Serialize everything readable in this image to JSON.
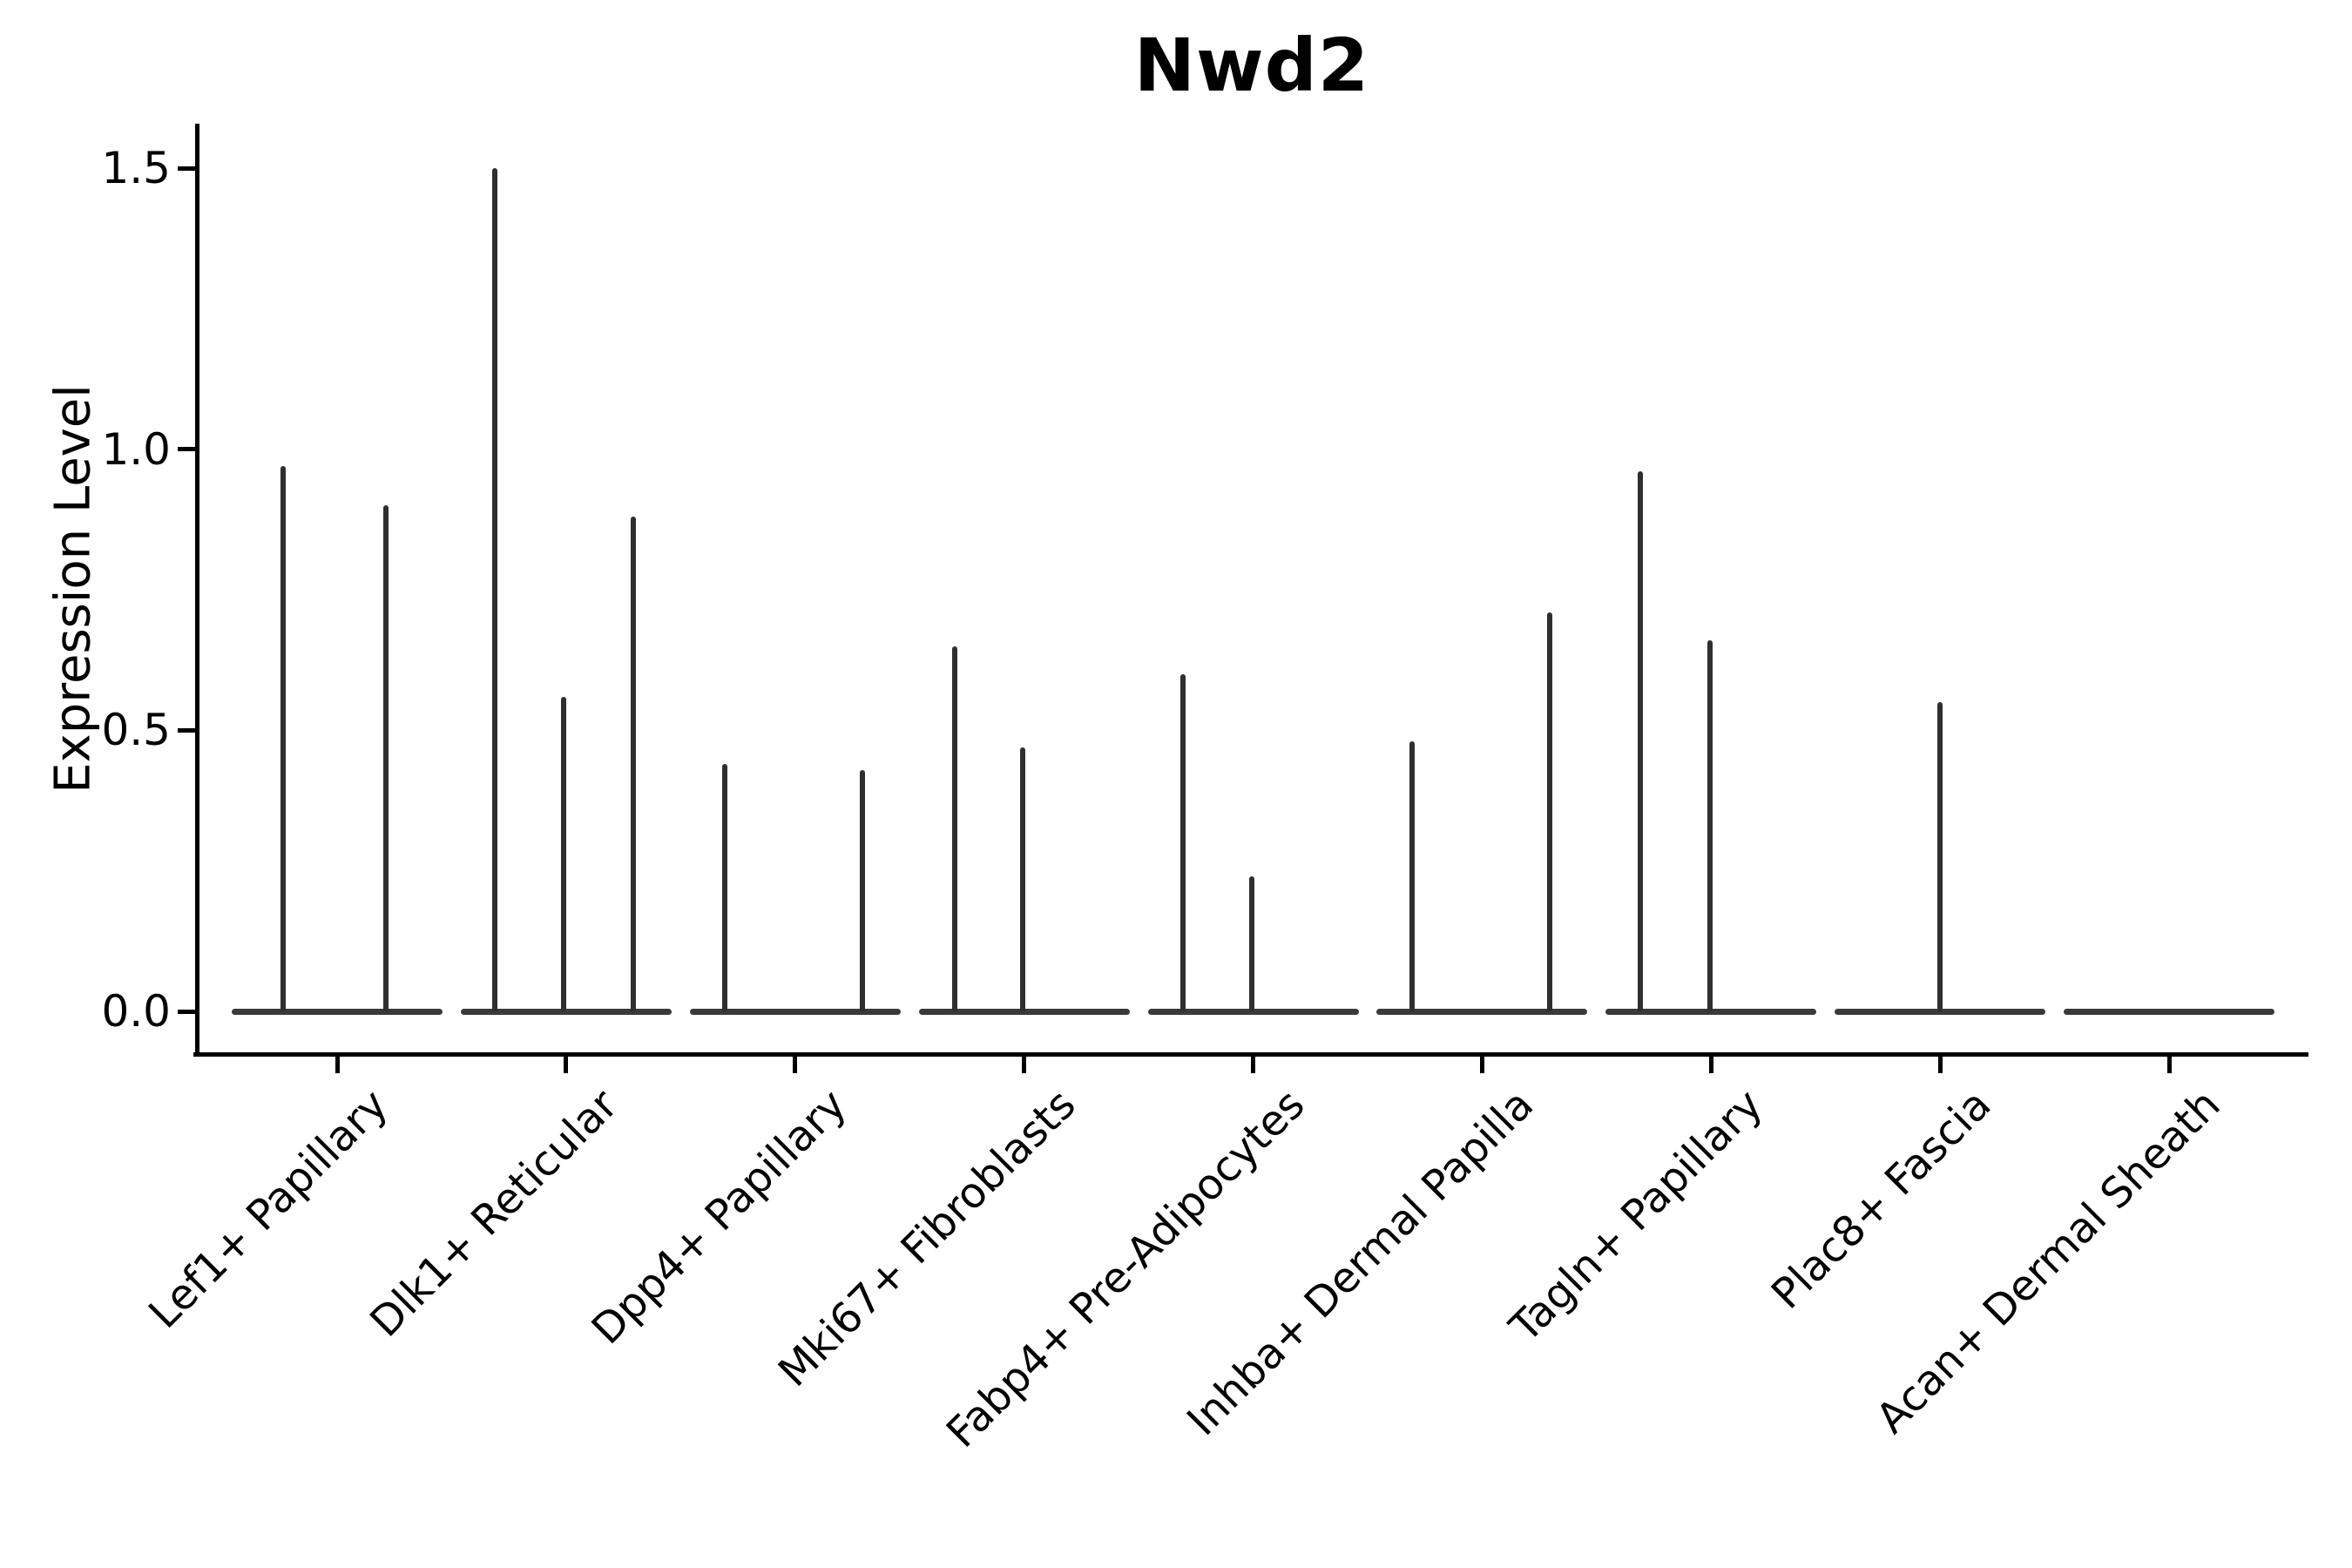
{
  "title": "Nwd2",
  "y_axis": {
    "label": "Expression Level",
    "ticks": [
      {
        "label": "0.0",
        "value": 0.0
      },
      {
        "label": "0.5",
        "value": 0.5
      },
      {
        "label": "1.0",
        "value": 1.0
      },
      {
        "label": "1.5",
        "value": 1.5
      }
    ]
  },
  "chart_data": {
    "type": "violin",
    "title": "Nwd2",
    "xlabel": "",
    "ylabel": "Expression Level",
    "ylim": [
      0,
      1.58
    ],
    "grid": false,
    "legend": "none",
    "line_color": "#2f2f2f",
    "categories": [
      "Lef1+ Papillary",
      "Dlk1+ Reticular",
      "Dpp4+ Papillary",
      "Mki67+ Fibroblasts",
      "Fabp4+ Pre-Adipocytes",
      "Inhba+ Dermal Papilla",
      "Tagln+ Papillary",
      "Plac8+ Fascia",
      "Acan+ Dermal Sheath"
    ],
    "series": [
      {
        "name": "Lef1+ Papillary",
        "baseline_value": 0,
        "spikes": [
          {
            "offset": -62,
            "value": 0.97
          },
          {
            "offset": 56,
            "value": 0.9
          }
        ]
      },
      {
        "name": "Dlk1+ Reticular",
        "baseline_value": 0,
        "spikes": [
          {
            "offset": -82,
            "value": 1.5
          },
          {
            "offset": -3,
            "value": 0.56
          },
          {
            "offset": 77,
            "value": 0.88
          }
        ]
      },
      {
        "name": "Dpp4+ Papillary",
        "baseline_value": 0,
        "spikes": [
          {
            "offset": -81,
            "value": 0.44
          },
          {
            "offset": 77,
            "value": 0.43
          }
        ]
      },
      {
        "name": "Mki67+ Fibroblasts",
        "baseline_value": 0,
        "spikes": [
          {
            "offset": -80,
            "value": 0.65
          },
          {
            "offset": -2,
            "value": 0.47
          }
        ]
      },
      {
        "name": "Fabp4+ Pre-Adipocytes",
        "baseline_value": 0,
        "spikes": [
          {
            "offset": -81,
            "value": 0.6
          },
          {
            "offset": -2,
            "value": 0.24
          }
        ]
      },
      {
        "name": "Inhba+ Dermal Papilla",
        "baseline_value": 0,
        "spikes": [
          {
            "offset": -80,
            "value": 0.48
          },
          {
            "offset": 78,
            "value": 0.71
          }
        ]
      },
      {
        "name": "Tagln+ Papillary",
        "baseline_value": 0,
        "spikes": [
          {
            "offset": -81,
            "value": 0.96
          },
          {
            "offset": -1,
            "value": 0.66
          }
        ]
      },
      {
        "name": "Plac8+ Fascia",
        "baseline_value": 0,
        "spikes": [
          {
            "offset": 0,
            "value": 0.55
          }
        ]
      },
      {
        "name": "Acan+ Dermal Sheath",
        "baseline_value": 0,
        "spikes": []
      }
    ]
  }
}
